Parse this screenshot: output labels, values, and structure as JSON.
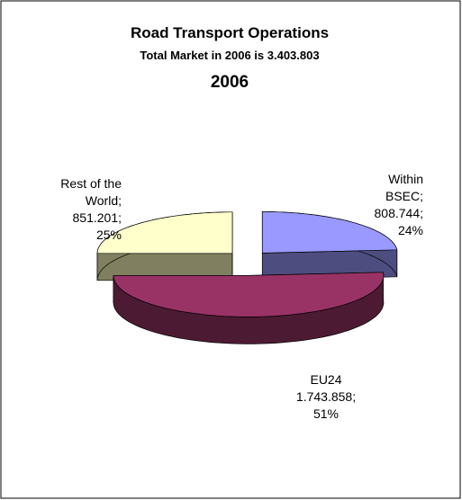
{
  "chart_data": {
    "type": "pie3d",
    "title": "Road Transport Operations",
    "subtitle": "Total Market in 2006 is 3.403.803",
    "year_label": "2006",
    "categories": [
      "Within BSEC;",
      "EU24",
      "Rest of the World;"
    ],
    "values": [
      808744,
      1743858,
      851201
    ],
    "value_labels": [
      "808.744;",
      "1.743.858;",
      "851.201;"
    ],
    "percent_labels": [
      "24%",
      "51%",
      "25%"
    ],
    "colors": [
      "#9999ff",
      "#993366",
      "#ffffcc"
    ],
    "side_colors": [
      "#4d4d80",
      "#4d1a33",
      "#808060"
    ]
  }
}
